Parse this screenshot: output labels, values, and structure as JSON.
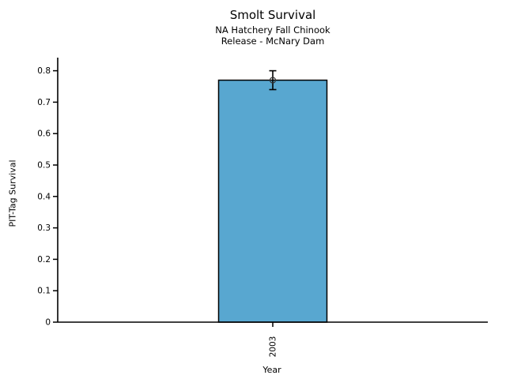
{
  "chart_data": {
    "type": "bar",
    "title": "Smolt Survival",
    "subtitle_lines": [
      "NA Hatchery Fall Chinook",
      "Release - McNary Dam"
    ],
    "xlabel": "Year",
    "ylabel": "PIT-Tag Survival",
    "categories": [
      "2003"
    ],
    "values": [
      0.77
    ],
    "error": [
      0.03
    ],
    "ylim": [
      0,
      0.8
    ],
    "yticks": [
      0,
      0.1,
      0.2,
      0.3,
      0.4,
      0.5,
      0.6,
      0.7,
      0.8
    ],
    "ytick_labels": [
      "0",
      "0.1",
      "0.2",
      "0.3",
      "0.4",
      "0.5",
      "0.6",
      "0.7",
      "0.8"
    ],
    "bar_color": "#58A7D0",
    "bar_edge_color": "#000000",
    "axis_color": "#000000",
    "marker": "open-circle",
    "grid": false,
    "legend_position": "none"
  }
}
